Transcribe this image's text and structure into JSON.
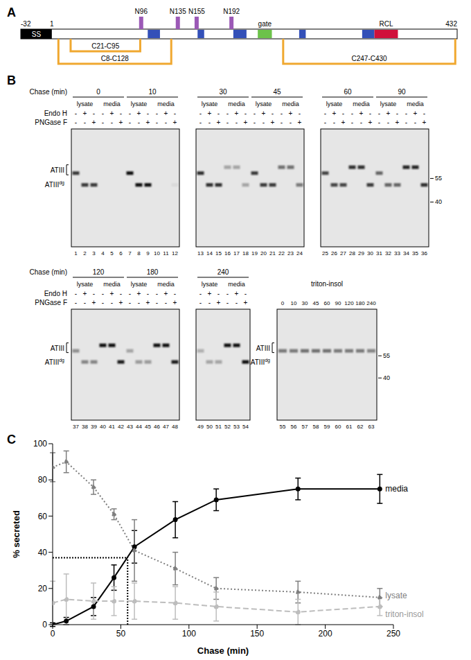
{
  "panel_labels": [
    "A",
    "B",
    "C"
  ],
  "domain_map": {
    "range": [
      -32,
      432
    ],
    "position_labels": [
      -32,
      1,
      432
    ],
    "signal_peptide": {
      "label": "SS",
      "start": -32,
      "end": 1,
      "color": "#000000"
    },
    "glycosylation_sites": {
      "color": "#9b59b6",
      "sites": [
        {
          "label": "N96",
          "position": 96
        },
        {
          "label": "N135",
          "position": 135
        },
        {
          "label": "N155",
          "position": 155
        },
        {
          "label": "N192",
          "position": 192
        }
      ]
    },
    "regions": [
      {
        "start": 103,
        "end": 116,
        "color": "#3350b8"
      },
      {
        "start": 156,
        "end": 163,
        "color": "#3350b8"
      },
      {
        "start": 194,
        "end": 208,
        "color": "#3350b8"
      },
      {
        "start": 264,
        "end": 271,
        "color": "#3350b8"
      },
      {
        "start": 331,
        "end": 344,
        "color": "#3350b8"
      },
      {
        "label": "gate",
        "start": 220,
        "end": 235,
        "color": "#6cc24a"
      },
      {
        "label": "RCL",
        "start": 344,
        "end": 369,
        "color": "#d0103a"
      }
    ],
    "disulfide_bonds": {
      "color": "#f0a830",
      "bonds": [
        {
          "label": "C21-C95",
          "from": 21,
          "to": 95
        },
        {
          "label": "C8-C128",
          "from": 8,
          "to": 128
        },
        {
          "label": "C247-C430",
          "from": 247,
          "to": 430
        }
      ]
    }
  },
  "gels": {
    "chase_label": "Chase (min)",
    "fraction_labels": [
      "lysate",
      "media"
    ],
    "treatments": [
      {
        "label": "Endo H",
        "signs": [
          "-",
          "+",
          "-",
          "-",
          "+",
          "-"
        ]
      },
      {
        "label": "PNGase F",
        "signs": [
          "-",
          "-",
          "+",
          "-",
          "-",
          "+"
        ]
      }
    ],
    "band_labels": {
      "glycosylated": "ATIII",
      "deglycosylated": {
        "label": "ATIII",
        "superscript": "dg"
      }
    },
    "markers_kda": [
      55,
      40
    ],
    "rows": [
      [
        [
          {
            "chase": 0,
            "lanes": [
              1,
              2,
              3,
              4,
              5,
              6
            ],
            "intensity": [
              0.8,
              0.8,
              0.8,
              0,
              0,
              0
            ]
          },
          {
            "chase": 10,
            "lanes": [
              7,
              8,
              9,
              10,
              11,
              12
            ],
            "intensity": [
              1,
              1,
              1,
              0,
              0,
              0.05
            ]
          }
        ],
        [
          {
            "chase": 30,
            "lanes": [
              13,
              14,
              15,
              16,
              17,
              18
            ],
            "intensity": [
              0.85,
              0.85,
              0.85,
              0.3,
              0.3,
              0.3
            ]
          },
          {
            "chase": 45,
            "lanes": [
              19,
              20,
              21,
              22,
              23,
              24
            ],
            "intensity": [
              0.8,
              0.8,
              0.8,
              0.55,
              0.55,
              0.5
            ]
          }
        ],
        [
          {
            "chase": 60,
            "lanes": [
              25,
              26,
              27,
              28,
              29,
              30
            ],
            "intensity": [
              0.75,
              0.75,
              0.75,
              0.85,
              0.85,
              0.8
            ]
          },
          {
            "chase": 90,
            "lanes": [
              31,
              32,
              33,
              34,
              35,
              36
            ],
            "intensity": [
              0.6,
              0.6,
              0.6,
              0.9,
              0.9,
              0.85
            ]
          }
        ]
      ],
      [
        [
          {
            "chase": 120,
            "lanes": [
              37,
              38,
              39,
              40,
              41,
              42
            ],
            "intensity": [
              0.4,
              0.45,
              0.45,
              1,
              1,
              0.95
            ]
          },
          {
            "chase": 180,
            "lanes": [
              43,
              44,
              45,
              46,
              47,
              48
            ],
            "intensity": [
              0.3,
              0.35,
              0.35,
              1,
              1,
              0.95
            ]
          }
        ],
        [
          {
            "chase": 240,
            "lanes": [
              49,
              50,
              51,
              52,
              53,
              54
            ],
            "intensity": [
              0.25,
              0.3,
              0.3,
              1,
              1,
              1
            ]
          }
        ]
      ]
    ],
    "triton": {
      "label": "triton-insol",
      "chase": [
        0,
        10,
        30,
        45,
        60,
        90,
        120,
        180,
        240
      ],
      "lanes": [
        55,
        56,
        57,
        58,
        59,
        60,
        61,
        62,
        63
      ],
      "intensity": [
        0.5,
        0.5,
        0.55,
        0.55,
        0.55,
        0.5,
        0.5,
        0.5,
        0.45
      ]
    }
  },
  "chart_data": {
    "type": "line",
    "x_label": "Chase (min)",
    "y_label": "% secreted",
    "xlim": [
      0,
      250
    ],
    "xticks": [
      0,
      50,
      100,
      150,
      200,
      250
    ],
    "ylim": [
      0,
      100
    ],
    "yticks": [
      0,
      20,
      40,
      60,
      80,
      100
    ],
    "grid": false,
    "x": [
      0,
      10,
      30,
      45,
      60,
      90,
      120,
      180,
      240
    ],
    "series": [
      {
        "name": "media",
        "color": "#000000",
        "line_style": "solid",
        "marker": "circle",
        "values": [
          0,
          2,
          10,
          26,
          43,
          58,
          69,
          75,
          75
        ],
        "errors": [
          1,
          2,
          5,
          7,
          9,
          10,
          6,
          6,
          8
        ]
      },
      {
        "name": "lysate",
        "color": "#7f7f7f",
        "line_style": "dotted",
        "marker": "circle",
        "values": [
          87,
          90,
          76,
          61,
          41,
          31,
          20,
          18,
          15
        ],
        "errors": [
          8,
          6,
          4,
          3,
          17,
          9,
          6,
          6,
          5
        ]
      },
      {
        "name": "triton-insol",
        "color": "#bdbdbd",
        "line_style": "dashed",
        "marker": "circle",
        "values": [
          12,
          14,
          13,
          13,
          13,
          12,
          10,
          7,
          10
        ],
        "errors": [
          12,
          14,
          10,
          8,
          10,
          9,
          8,
          7,
          5
        ]
      }
    ],
    "reference_point": {
      "x": 55,
      "y": 37
    }
  }
}
